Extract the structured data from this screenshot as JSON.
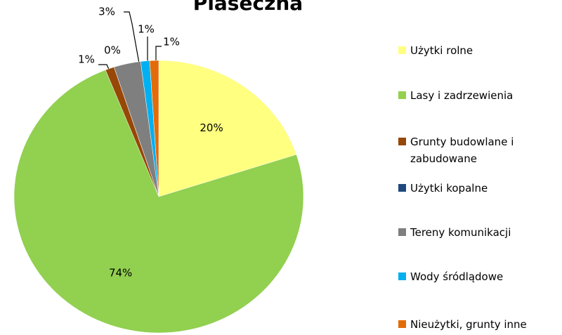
{
  "chart_data": {
    "type": "pie",
    "title": "Piaseczna",
    "categories": [
      "Użytki rolne",
      "Lasy i zadrzewienia",
      "Grunty budowlane i zabudowane",
      "Użytki kopalne",
      "Tereny komunikacji",
      "Wody śródlądowe",
      "Nieużytki, grunty inne"
    ],
    "values": [
      20,
      74,
      1,
      0,
      3,
      1,
      1
    ],
    "value_labels": [
      "20%",
      "74%",
      "1%",
      "0%",
      "3%",
      "1%",
      "1%"
    ],
    "colors": [
      "#ffff80",
      "#92d050",
      "#974706",
      "#1f497d",
      "#7f7f7f",
      "#00b0f0",
      "#e36c09"
    ],
    "legend": "right"
  }
}
